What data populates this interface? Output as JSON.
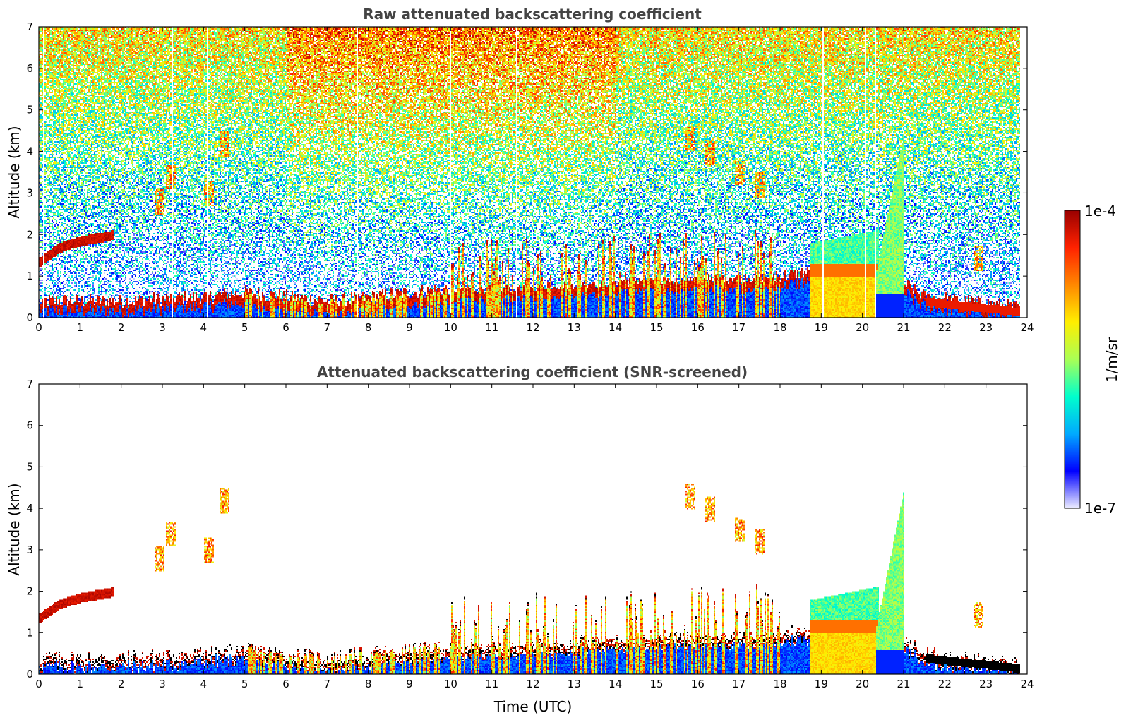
{
  "chart_data": [
    {
      "type": "heatmap",
      "title": "Raw attenuated backscattering coefficient",
      "xlabel": "",
      "ylabel": "Altitude (km)",
      "xlim": [
        0,
        24
      ],
      "ylim": [
        0,
        7
      ],
      "x_ticks": [
        "0",
        "1",
        "2",
        "3",
        "4",
        "5",
        "6",
        "7",
        "8",
        "9",
        "10",
        "11",
        "12",
        "13",
        "14",
        "15",
        "16",
        "17",
        "18",
        "19",
        "20",
        "21",
        "22",
        "23",
        "24"
      ],
      "y_ticks": [
        "0",
        "1",
        "2",
        "3",
        "4",
        "5",
        "6",
        "7"
      ],
      "screened": false,
      "features": [
        {
          "kind": "boundary_layer",
          "t": [
            0,
            2,
            4,
            5,
            7,
            8,
            10,
            12,
            14,
            16,
            18,
            18.7,
            20.4,
            21.5,
            23.8
          ],
          "h": [
            0.3,
            0.3,
            0.4,
            0.5,
            0.3,
            0.4,
            0.6,
            0.7,
            0.8,
            0.9,
            0.9,
            1.0,
            1.1,
            0.4,
            0.15
          ]
        },
        {
          "kind": "rising_layer",
          "t": [
            0,
            0.5,
            1,
            1.8
          ],
          "h": [
            1.35,
            1.7,
            1.85,
            2.0
          ]
        },
        {
          "kind": "elevated_aerosol",
          "t": [
            18.7,
            20.4
          ],
          "h": [
            0.2,
            1.6
          ]
        },
        {
          "kind": "plume",
          "t": [
            20.3,
            21.0
          ],
          "h": [
            0.5,
            4.5
          ]
        },
        {
          "kind": "cloud_patches",
          "t": [
            2.9,
            3.2,
            4.1,
            4.5,
            15.8,
            16.3,
            17.0,
            17.5,
            22.8
          ],
          "h": [
            2.8,
            3.4,
            3.0,
            4.2,
            4.3,
            4.0,
            3.5,
            3.2,
            1.45
          ]
        }
      ]
    },
    {
      "type": "heatmap",
      "title": "Attenuated backscattering coefficient (SNR-screened)",
      "xlabel": "Time (UTC)",
      "ylabel": "Altitude (km)",
      "xlim": [
        0,
        24
      ],
      "ylim": [
        0,
        7
      ],
      "x_ticks": [
        "0",
        "1",
        "2",
        "3",
        "4",
        "5",
        "6",
        "7",
        "8",
        "9",
        "10",
        "11",
        "12",
        "13",
        "14",
        "15",
        "16",
        "17",
        "18",
        "19",
        "20",
        "21",
        "22",
        "23",
        "24"
      ],
      "y_ticks": [
        "0",
        "1",
        "2",
        "3",
        "4",
        "5",
        "6",
        "7"
      ],
      "screened": true
    }
  ],
  "colorbar": {
    "label": "1/m/sr",
    "max_label": "1e-4",
    "min_label": "1e-7",
    "scale": "log",
    "range": [
      1e-07,
      0.0001
    ],
    "colormap": "jet",
    "colors": [
      "#ececff",
      "#0000ff",
      "#00aaff",
      "#00ffcc",
      "#aaff55",
      "#ffee00",
      "#ff8800",
      "#ff2200",
      "#990000"
    ]
  }
}
